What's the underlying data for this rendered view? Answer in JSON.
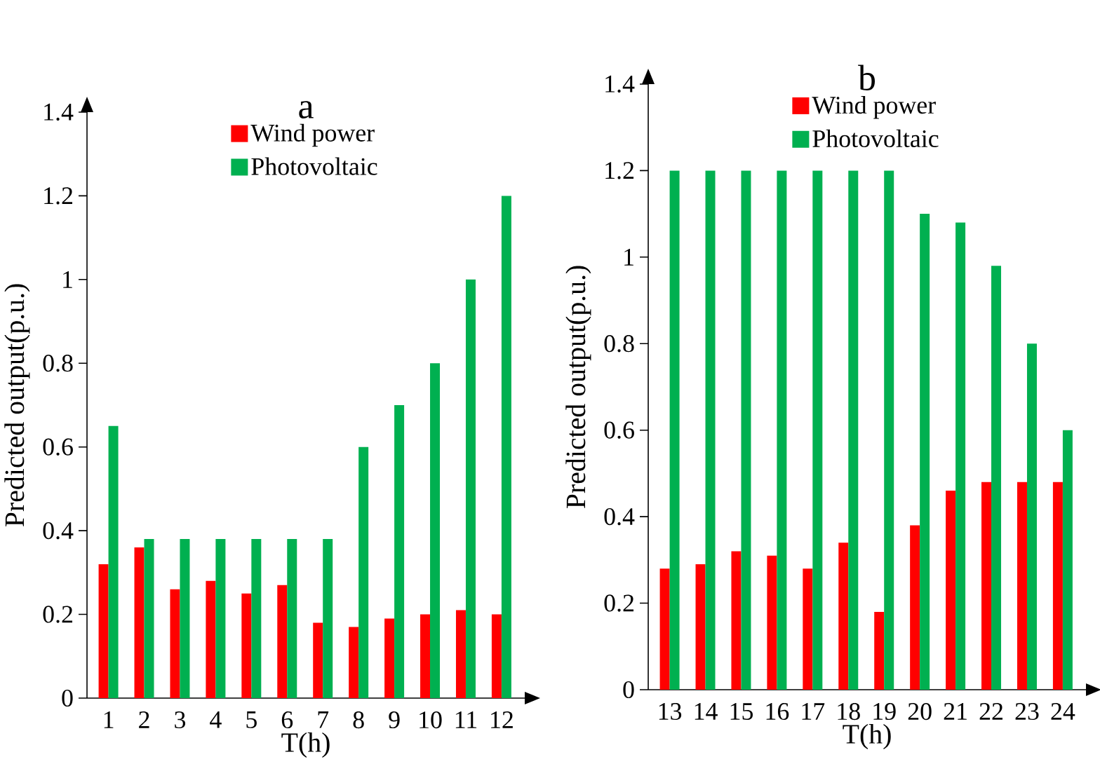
{
  "chart_data": [
    {
      "type": "bar",
      "title": "a",
      "xlabel": "T(h)",
      "ylabel": "Predicted output(p.u.)",
      "categories": [
        "1",
        "2",
        "3",
        "4",
        "5",
        "6",
        "7",
        "8",
        "9",
        "10",
        "11",
        "12"
      ],
      "series": [
        {
          "name": "Wind power",
          "color": "#ff0000",
          "values": [
            0.32,
            0.36,
            0.26,
            0.28,
            0.25,
            0.27,
            0.18,
            0.17,
            0.19,
            0.2,
            0.21,
            0.2
          ]
        },
        {
          "name": "Photovoltaic",
          "color": "#00b050",
          "values": [
            0.65,
            0.38,
            0.38,
            0.38,
            0.38,
            0.38,
            0.38,
            0.6,
            0.7,
            0.8,
            1.0,
            1.2
          ]
        }
      ],
      "ylim": [
        0,
        1.4
      ],
      "yticks": [
        0,
        0.2,
        0.4,
        0.6,
        0.8,
        1,
        1.2,
        1.4
      ],
      "grid": false,
      "legend": "top"
    },
    {
      "type": "bar",
      "title": "b",
      "xlabel": "T(h)",
      "ylabel": "Predicted output(p.u.)",
      "categories": [
        "13",
        "14",
        "15",
        "16",
        "17",
        "18",
        "19",
        "20",
        "21",
        "22",
        "23",
        "24"
      ],
      "series": [
        {
          "name": "Wind power",
          "color": "#ff0000",
          "values": [
            0.28,
            0.29,
            0.32,
            0.31,
            0.28,
            0.34,
            0.18,
            0.38,
            0.46,
            0.48,
            0.48,
            0.48
          ]
        },
        {
          "name": "Photovoltaic",
          "color": "#00b050",
          "values": [
            1.2,
            1.2,
            1.2,
            1.2,
            1.2,
            1.2,
            1.2,
            1.1,
            1.08,
            0.98,
            0.8,
            0.6
          ]
        }
      ],
      "ylim": [
        0,
        1.4
      ],
      "yticks": [
        0,
        0.2,
        0.4,
        0.6,
        0.8,
        1,
        1.2,
        1.4
      ],
      "grid": false,
      "legend": "top"
    }
  ]
}
